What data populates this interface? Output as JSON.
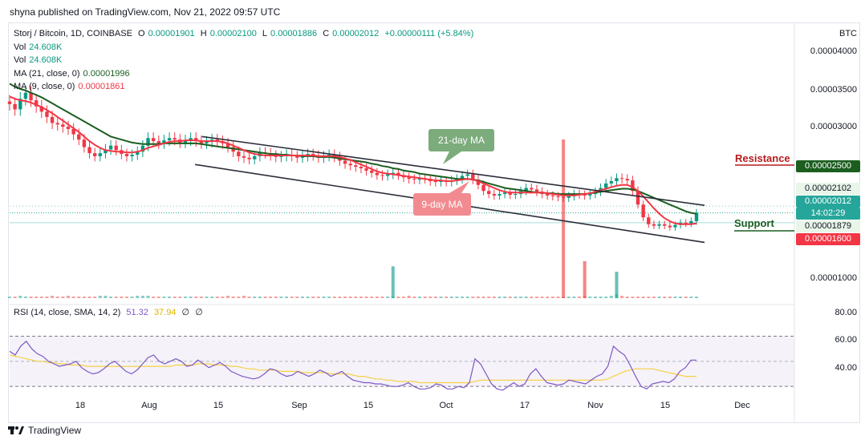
{
  "publisher": "shyna published on TradingView.com, Nov 21, 2022 09:57 UTC",
  "legend": {
    "symbol": "Storj / Bitcoin, 1D, COINBASE",
    "o_label": "O",
    "o": "0.00001901",
    "h_label": "H",
    "h": "0.00002100",
    "l_label": "L",
    "l": "0.00001886",
    "c_label": "C",
    "c": "0.00002012",
    "change": "+0.00000111 (+5.84%)",
    "vol1_label": "Vol",
    "vol1": "24.608K",
    "vol2_label": "Vol",
    "vol2": "24.608K",
    "ma21_label": "MA (21, close, 0)",
    "ma21": "0.00001996",
    "ma9_label": "MA (9, close, 0)",
    "ma9": "0.00001861"
  },
  "currency": "BTC",
  "price_axis": [
    "0.00004000",
    "0.00003500",
    "0.00003000",
    "0.00001000"
  ],
  "badges": {
    "resistance": "0.00002500",
    "high": "0.00002102",
    "close": "0.00002012",
    "countdown": "14:02:29",
    "low": "0.00001879",
    "support": "0.00001600"
  },
  "annotations": {
    "resistance": "Resistance",
    "support": "Support",
    "ma21_callout": "21-day MA",
    "ma9_callout": "9-day MA"
  },
  "rsi": {
    "label": "RSI (14, close, SMA, 14, 2)",
    "value": "51.32",
    "sma": "37.94",
    "extra1": "∅",
    "extra2": "∅",
    "axis": [
      "80.00",
      "60.00",
      "40.00"
    ]
  },
  "time_axis": [
    "18",
    "Aug",
    "15",
    "Sep",
    "15",
    "Oct",
    "17",
    "Nov",
    "15",
    "Dec"
  ],
  "footer_brand": "TradingView",
  "colors": {
    "up": "#089981",
    "down": "#f23645",
    "ma21": "#1b5e20",
    "ma9": "#f23645",
    "rsi": "#7e57c2",
    "rsi_sma": "#f5d142"
  },
  "chart_data": {
    "type": "candlestick",
    "title": "Storj / Bitcoin, 1D, COINBASE",
    "ylabel": "BTC",
    "ylim": [
      8.5e-06,
      4.35e-05
    ],
    "x_ticks": [
      "18",
      "Aug",
      "15",
      "Sep",
      "15",
      "Oct",
      "17",
      "Nov",
      "15",
      "Dec"
    ],
    "close": [
      3.45e-05,
      3.38e-05,
      3.52e-05,
      3.6e-05,
      3.5e-05,
      3.42e-05,
      3.35e-05,
      3.28e-05,
      3.2e-05,
      3.18e-05,
      3.15e-05,
      3.12e-05,
      3.05e-05,
      2.98e-05,
      2.88e-05,
      2.8e-05,
      2.76e-05,
      2.8e-05,
      2.85e-05,
      2.9e-05,
      2.84e-05,
      2.79e-05,
      2.76e-05,
      2.78e-05,
      2.82e-05,
      2.9e-05,
      3e-05,
      2.96e-05,
      2.93e-05,
      2.97e-05,
      3e-05,
      2.98e-05,
      2.94e-05,
      2.97e-05,
      3e-05,
      2.96e-05,
      2.93e-05,
      2.95e-05,
      2.98e-05,
      2.96e-05,
      2.93e-05,
      2.88e-05,
      2.82e-05,
      2.76e-05,
      2.74e-05,
      2.72e-05,
      2.76e-05,
      2.81e-05,
      2.8e-05,
      2.77e-05,
      2.75e-05,
      2.76e-05,
      2.78e-05,
      2.76e-05,
      2.74e-05,
      2.76e-05,
      2.79e-05,
      2.77e-05,
      2.74e-05,
      2.76e-05,
      2.78e-05,
      2.75e-05,
      2.7e-05,
      2.66e-05,
      2.64e-05,
      2.62e-05,
      2.6e-05,
      2.57e-05,
      2.54e-05,
      2.51e-05,
      2.5e-05,
      2.52e-05,
      2.54e-05,
      2.51e-05,
      2.48e-05,
      2.46e-05,
      2.45e-05,
      2.47e-05,
      2.46e-05,
      2.43e-05,
      2.42e-05,
      2.43e-05,
      2.42e-05,
      2.44e-05,
      2.46e-05,
      2.5e-05,
      2.52e-05,
      2.45e-05,
      2.38e-05,
      2.3e-05,
      2.26e-05,
      2.24e-05,
      2.26e-05,
      2.28e-05,
      2.25e-05,
      2.26e-05,
      2.3e-05,
      2.34e-05,
      2.32e-05,
      2.29e-05,
      2.26e-05,
      2.24e-05,
      2.23e-05,
      2.22e-05,
      2.21e-05,
      2.23e-05,
      2.26e-05,
      2.25e-05,
      2.24e-05,
      2.26e-05,
      2.29e-05,
      2.34e-05,
      2.4e-05,
      2.43e-05,
      2.47e-05,
      2.46e-05,
      2.44e-05,
      2.3e-05,
      2.12e-05,
      1.95e-05,
      1.86e-05,
      1.84e-05,
      1.86e-05,
      1.84e-05,
      1.82e-05,
      1.85e-05,
      1.88e-05,
      1.87e-05,
      1.9e-05,
      2.01e-05
    ],
    "ma21": [
      3.72e-05,
      3.68e-05,
      3.65e-05,
      3.63e-05,
      3.6e-05,
      3.57e-05,
      3.54e-05,
      3.5e-05,
      3.46e-05,
      3.42e-05,
      3.38e-05,
      3.34e-05,
      3.3e-05,
      3.26e-05,
      3.22e-05,
      3.18e-05,
      3.14e-05,
      3.1e-05,
      3.06e-05,
      3.02e-05,
      3e-05,
      2.98e-05,
      2.96e-05,
      2.94e-05,
      2.93e-05,
      2.92e-05,
      2.92e-05,
      2.92e-05,
      2.92e-05,
      2.93e-05,
      2.93e-05,
      2.93e-05,
      2.93e-05,
      2.93e-05,
      2.93e-05,
      2.93e-05,
      2.92e-05,
      2.91e-05,
      2.9e-05,
      2.89e-05,
      2.88e-05,
      2.87e-05,
      2.86e-05,
      2.85e-05,
      2.84e-05,
      2.83e-05,
      2.82e-05,
      2.81e-05,
      2.8e-05,
      2.79e-05,
      2.79e-05,
      2.78e-05,
      2.78e-05,
      2.77e-05,
      2.77e-05,
      2.76e-05,
      2.76e-05,
      2.76e-05,
      2.75e-05,
      2.75e-05,
      2.75e-05,
      2.74e-05,
      2.73e-05,
      2.72e-05,
      2.71e-05,
      2.7e-05,
      2.69e-05,
      2.68e-05,
      2.66e-05,
      2.65e-05,
      2.63e-05,
      2.62e-05,
      2.6e-05,
      2.59e-05,
      2.57e-05,
      2.56e-05,
      2.55e-05,
      2.53e-05,
      2.52e-05,
      2.51e-05,
      2.5e-05,
      2.49e-05,
      2.48e-05,
      2.47e-05,
      2.46e-05,
      2.46e-05,
      2.46e-05,
      2.45e-05,
      2.44e-05,
      2.42e-05,
      2.4e-05,
      2.38e-05,
      2.36e-05,
      2.34e-05,
      2.33e-05,
      2.32e-05,
      2.31e-05,
      2.3e-05,
      2.29e-05,
      2.28e-05,
      2.28e-05,
      2.27e-05,
      2.27e-05,
      2.26e-05,
      2.26e-05,
      2.26e-05,
      2.26e-05,
      2.26e-05,
      2.26e-05,
      2.27e-05,
      2.28e-05,
      2.29e-05,
      2.3e-05,
      2.31e-05,
      2.32e-05,
      2.33e-05,
      2.33e-05,
      2.32e-05,
      2.3e-05,
      2.27e-05,
      2.24e-05,
      2.21e-05,
      2.18e-05,
      2.15e-05,
      2.12e-05,
      2.09e-05,
      2.06e-05,
      2.03e-05,
      2.01e-05,
      2e-05
    ],
    "ma9": [
      3.55e-05,
      3.52e-05,
      3.5e-05,
      3.49e-05,
      3.47e-05,
      3.44e-05,
      3.41e-05,
      3.37e-05,
      3.33e-05,
      3.28e-05,
      3.23e-05,
      3.18e-05,
      3.13e-05,
      3.08e-05,
      3.02e-05,
      2.96e-05,
      2.91e-05,
      2.87e-05,
      2.84e-05,
      2.83e-05,
      2.82e-05,
      2.82e-05,
      2.81e-05,
      2.81e-05,
      2.82e-05,
      2.84e-05,
      2.87e-05,
      2.89e-05,
      2.91e-05,
      2.93e-05,
      2.95e-05,
      2.96e-05,
      2.96e-05,
      2.97e-05,
      2.97e-05,
      2.97e-05,
      2.96e-05,
      2.96e-05,
      2.96e-05,
      2.96e-05,
      2.95e-05,
      2.93e-05,
      2.9e-05,
      2.87e-05,
      2.84e-05,
      2.81e-05,
      2.79e-05,
      2.78e-05,
      2.77e-05,
      2.77e-05,
      2.77e-05,
      2.77e-05,
      2.77e-05,
      2.77e-05,
      2.77e-05,
      2.77e-05,
      2.77e-05,
      2.77e-05,
      2.76e-05,
      2.76e-05,
      2.76e-05,
      2.76e-05,
      2.75e-05,
      2.73e-05,
      2.71e-05,
      2.68e-05,
      2.65e-05,
      2.62e-05,
      2.59e-05,
      2.56e-05,
      2.54e-05,
      2.53e-05,
      2.52e-05,
      2.51e-05,
      2.5e-05,
      2.49e-05,
      2.48e-05,
      2.47e-05,
      2.46e-05,
      2.45e-05,
      2.44e-05,
      2.44e-05,
      2.43e-05,
      2.43e-05,
      2.44e-05,
      2.45e-05,
      2.46e-05,
      2.45e-05,
      2.43e-05,
      2.4e-05,
      2.37e-05,
      2.34e-05,
      2.31e-05,
      2.29e-05,
      2.28e-05,
      2.28e-05,
      2.28e-05,
      2.28e-05,
      2.28e-05,
      2.28e-05,
      2.28e-05,
      2.27e-05,
      2.26e-05,
      2.25e-05,
      2.24e-05,
      2.24e-05,
      2.24e-05,
      2.25e-05,
      2.26e-05,
      2.27e-05,
      2.29e-05,
      2.31e-05,
      2.33e-05,
      2.35e-05,
      2.37e-05,
      2.38e-05,
      2.38e-05,
      2.35e-05,
      2.3e-05,
      2.23e-05,
      2.15e-05,
      2.07e-05,
      2e-05,
      1.94e-05,
      1.9e-05,
      1.87e-05,
      1.86e-05,
      1.86e-05,
      1.86e-05,
      1.87e-05
    ],
    "volume": [
      2,
      2,
      3,
      2,
      2,
      2,
      2,
      2,
      3,
      2,
      2,
      3,
      2,
      2,
      2,
      2,
      2,
      3,
      3,
      2,
      2,
      2,
      2,
      2,
      3,
      3,
      3,
      2,
      2,
      2,
      2,
      2,
      2,
      2,
      2,
      2,
      2,
      2,
      2,
      2,
      2,
      3,
      2,
      2,
      3,
      2,
      2,
      2,
      2,
      2,
      2,
      2,
      2,
      2,
      2,
      2,
      2,
      2,
      2,
      2,
      2,
      2,
      2,
      2,
      2,
      2,
      2,
      2,
      2,
      2,
      2,
      2,
      2,
      2,
      2,
      3,
      2,
      2,
      2,
      2,
      2,
      2,
      2,
      2,
      2,
      2,
      2,
      2,
      2,
      2,
      2,
      2,
      2,
      2,
      2,
      2,
      2,
      2,
      2,
      2,
      2,
      2,
      2,
      2,
      2,
      2,
      2,
      2,
      3,
      2,
      2,
      2,
      2,
      3,
      5,
      3,
      2,
      2,
      2,
      2,
      2,
      2,
      2,
      2,
      2,
      2,
      2,
      2,
      2,
      2
    ],
    "volume_spikes": [
      {
        "index": 72,
        "value": 12
      },
      {
        "index": 104,
        "value": 60
      },
      {
        "index": 108,
        "value": 14
      },
      {
        "index": 114,
        "value": 10
      }
    ],
    "rsi": [
      58,
      55,
      62,
      66,
      60,
      56,
      54,
      50,
      48,
      46,
      47,
      48,
      50,
      45,
      42,
      40,
      41,
      44,
      48,
      50,
      46,
      42,
      40,
      43,
      48,
      53,
      55,
      50,
      48,
      50,
      52,
      50,
      46,
      47,
      51,
      48,
      45,
      47,
      49,
      46,
      42,
      40,
      38,
      37,
      36,
      37,
      40,
      44,
      43,
      40,
      38,
      39,
      42,
      40,
      38,
      40,
      43,
      41,
      38,
      40,
      42,
      38,
      35,
      34,
      33,
      33,
      32,
      32,
      31,
      30,
      30,
      31,
      33,
      30,
      28,
      28,
      29,
      32,
      31,
      28,
      28,
      30,
      29,
      33,
      52,
      48,
      40,
      32,
      28,
      27,
      30,
      33,
      30,
      32,
      40,
      44,
      38,
      33,
      32,
      31,
      32,
      35,
      34,
      33,
      32,
      35,
      38,
      40,
      46,
      62,
      58,
      55,
      47,
      38,
      30,
      28,
      32,
      33,
      34,
      33,
      36,
      42,
      45,
      51,
      51
    ],
    "rsi_sma": [
      55,
      54,
      53,
      52,
      51,
      50,
      50,
      49,
      49,
      48,
      48,
      47,
      47,
      47,
      46,
      46,
      46,
      46,
      46,
      46,
      46,
      46,
      46,
      46,
      46,
      46,
      46,
      46,
      46,
      46,
      47,
      47,
      47,
      47,
      48,
      48,
      48,
      47,
      47,
      47,
      46,
      46,
      45,
      44,
      44,
      43,
      43,
      43,
      43,
      42,
      42,
      42,
      42,
      41,
      41,
      41,
      41,
      41,
      40,
      40,
      40,
      40,
      39,
      38,
      38,
      37,
      36,
      36,
      35,
      35,
      34,
      34,
      34,
      34,
      33,
      33,
      33,
      33,
      33,
      33,
      33,
      33,
      33,
      33,
      34,
      35,
      35,
      35,
      35,
      35,
      35,
      35,
      35,
      35,
      35,
      35,
      35,
      35,
      35,
      35,
      35,
      35,
      35,
      35,
      35,
      35,
      35,
      35,
      36,
      38,
      40,
      42,
      43,
      44,
      44,
      44,
      44,
      43,
      42,
      41,
      40,
      39,
      38,
      38,
      38
    ],
    "rsi_ylim": [
      25,
      85
    ],
    "channel_upper": [
      [
        0.28,
        3.02e-05
      ],
      [
        1.0,
        2.11e-05
      ]
    ],
    "channel_lower": [
      [
        0.27,
        2.65e-05
      ],
      [
        1.0,
        1.62e-05
      ]
    ]
  }
}
